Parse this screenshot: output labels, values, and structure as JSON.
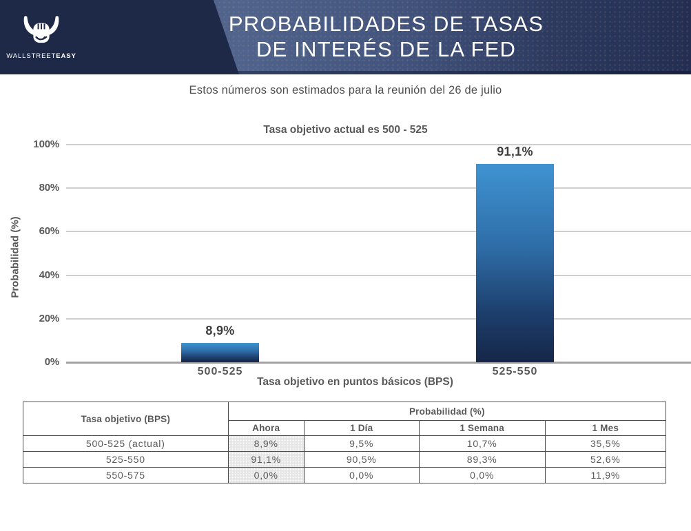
{
  "header": {
    "brand": {
      "logo_icon": "bull-fist-icon",
      "name_regular": "WALLSTREET",
      "name_bold": "EASY"
    },
    "title_line1": "PROBABILIDADES DE TASAS",
    "title_line2": "DE INTERÉS DE LA FED",
    "colors": {
      "logo_bg": "#1e2847",
      "band_mid": "#50648d",
      "band_right": "#232e52"
    }
  },
  "subtitle": "Estos números son estimados para la reunión del 26 de julio",
  "chart_data": {
    "type": "bar",
    "title": "Tasa objetivo actual es 500 - 525",
    "categories": [
      "500-525",
      "525-550"
    ],
    "values": [
      8.9,
      91.1
    ],
    "value_labels": [
      "8,9%",
      "91,1%"
    ],
    "xlabel": "Tasa objetivo en puntos básicos (BPS)",
    "ylabel": "Probabilidad (%)",
    "ylim": [
      0,
      100
    ],
    "yticks": [
      "100%",
      "80%",
      "60%",
      "40%",
      "20%",
      "0%"
    ],
    "grid": true,
    "legend": "none",
    "bar_color_top": "#3f93d2",
    "bar_color_bottom": "#152648"
  },
  "table": {
    "col1_header": "Tasa objetivo (BPS)",
    "group_header": "Probabilidad (%)",
    "sub_headers": [
      "Ahora",
      "1 Día",
      "1 Semana",
      "1 Mes"
    ],
    "rows": [
      {
        "label": "500-525 (actual)",
        "ahora": "8,9%",
        "dia": "9,5%",
        "semana": "10,7%",
        "mes": "35,5%"
      },
      {
        "label": "525-550",
        "ahora": "91,1%",
        "dia": "90,5%",
        "semana": "89,3%",
        "mes": "52,6%"
      },
      {
        "label": "550-575",
        "ahora": "0,0%",
        "dia": "0,0%",
        "semana": "0,0%",
        "mes": "11,9%"
      }
    ],
    "highlight_column_bg": "#e6e6e6"
  }
}
